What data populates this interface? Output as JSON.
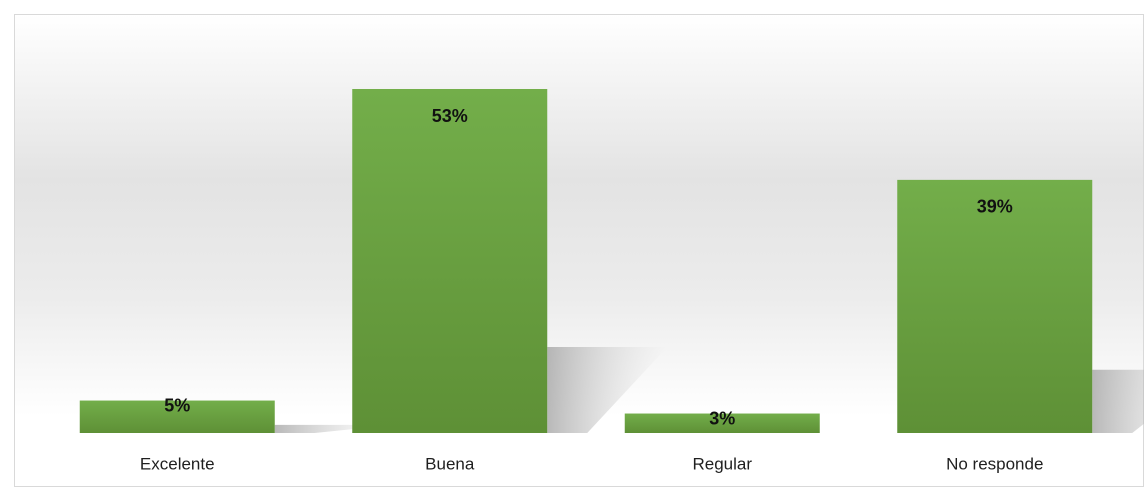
{
  "chart_data": {
    "type": "bar",
    "categories": [
      "Excelente",
      "Buena",
      "Regular",
      "No responde"
    ],
    "values": [
      5,
      53,
      3,
      39
    ],
    "value_labels": [
      "5%",
      "53%",
      "3%",
      "39%"
    ],
    "color": "#70ad47",
    "grid": false
  }
}
